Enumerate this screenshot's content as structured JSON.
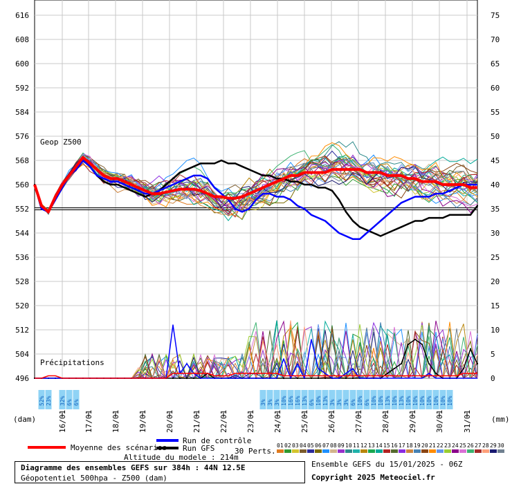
{
  "chart_data": {
    "type": "line",
    "title": "Diagramme des ensembles GEFS sur 384h : 44N 12.5E",
    "subtitle": "Géopotentiel 500hpa - Z500 (dam)",
    "left_axis": {
      "unit_label": "(dam)",
      "ylim": [
        496,
        620
      ],
      "ticks": [
        496,
        504,
        512,
        520,
        528,
        536,
        544,
        552,
        560,
        568,
        576,
        584,
        592,
        600,
        608,
        616
      ]
    },
    "right_axis": {
      "unit_label": "(mm)",
      "ylim": [
        0,
        77
      ],
      "ticks": [
        0,
        5,
        10,
        15,
        20,
        25,
        30,
        35,
        40,
        45,
        50,
        55,
        60,
        65,
        70,
        75
      ]
    },
    "x_tick_labels": [
      "16/01",
      "17/01",
      "18/01",
      "19/01",
      "20/01",
      "21/01",
      "22/01",
      "23/01",
      "24/01",
      "25/01",
      "26/01",
      "27/01",
      "28/01",
      "29/01",
      "30/01",
      "31/01"
    ],
    "steps": 65,
    "reference_line": 552,
    "section_labels": {
      "z500": "Geop Z500",
      "precip": "Précipitations"
    },
    "series": [
      {
        "name": "Moyenne des scénarios",
        "color": "#ff0000",
        "values": [
          560,
          553,
          551,
          556,
          560,
          563,
          566,
          569,
          567,
          565,
          563,
          562,
          562,
          561,
          560,
          559,
          558,
          557,
          557,
          557.5,
          558,
          558.5,
          558.5,
          558.5,
          558,
          557,
          556,
          556,
          555.5,
          555.5,
          556,
          557,
          558,
          559,
          560,
          561,
          562,
          563,
          563,
          564,
          564,
          564,
          564,
          565,
          565,
          565,
          565,
          565,
          564,
          564,
          564,
          563,
          563,
          563,
          562,
          562,
          561,
          561,
          561,
          560,
          560,
          560,
          560,
          559,
          559
        ]
      },
      {
        "name": "Run de contrôle",
        "color": "#0000ff",
        "values": [
          560,
          552,
          551,
          555,
          559,
          563,
          565,
          568,
          566,
          563,
          562,
          561,
          561,
          560,
          559,
          558,
          557,
          557,
          558,
          559,
          560,
          561,
          562,
          563,
          563,
          562,
          559,
          557,
          555,
          552,
          551,
          552,
          555,
          557,
          557,
          556,
          556,
          555,
          553,
          552,
          550,
          549,
          548,
          546,
          544,
          543,
          542,
          542,
          544,
          546,
          548,
          550,
          552,
          554,
          555,
          556,
          556,
          556,
          557,
          557,
          558,
          559,
          560,
          560,
          560
        ]
      },
      {
        "name": "Run GFS",
        "color": "#000000",
        "values": [
          560,
          552,
          551,
          555,
          559,
          563,
          565,
          568,
          566,
          563,
          561,
          560,
          560,
          559,
          558,
          557,
          556,
          557,
          558,
          560,
          562,
          564,
          565,
          566,
          567,
          567,
          567,
          568,
          567,
          567,
          566,
          565,
          564,
          563,
          563,
          562,
          562,
          561,
          561,
          560,
          560,
          559,
          559,
          558,
          555,
          551,
          548,
          546,
          545,
          544,
          543,
          544,
          545,
          546,
          547,
          548,
          548,
          549,
          549,
          549,
          550,
          550,
          550,
          550,
          553
        ]
      },
      {
        "name": "Précip. Run GFS",
        "axis": "right",
        "color": "#000000",
        "values": [
          0,
          0,
          0,
          0,
          0,
          0,
          0,
          0,
          0,
          0,
          0,
          0,
          0,
          0,
          0,
          0,
          0,
          0,
          0,
          0,
          0,
          0,
          0,
          0,
          0,
          1,
          0,
          0,
          0,
          0,
          0,
          0,
          0,
          0,
          0,
          0,
          0,
          0,
          0,
          0,
          0,
          0,
          0,
          0,
          0,
          0,
          0,
          0,
          0,
          0,
          0,
          1,
          2,
          3,
          7,
          8,
          7,
          3,
          1,
          0,
          0,
          0,
          2,
          6,
          3
        ]
      },
      {
        "name": "Précip. Run de contrôle",
        "axis": "right",
        "color": "#0000ff",
        "values": [
          0,
          0,
          0,
          0,
          0,
          0,
          0,
          0,
          0,
          0,
          0,
          0,
          0,
          0,
          0,
          0,
          0,
          0,
          0,
          0,
          11,
          1,
          3,
          1,
          0,
          0,
          0,
          0,
          0,
          0,
          0,
          0,
          0,
          0,
          0,
          0,
          4,
          0,
          3,
          0,
          8,
          2,
          1,
          0,
          0,
          1,
          2,
          0,
          0,
          0,
          0,
          0,
          0,
          0,
          0,
          0,
          0,
          1,
          0,
          0,
          0,
          0,
          0,
          0,
          0
        ]
      },
      {
        "name": "Précip. Moyenne",
        "axis": "right",
        "color": "#ff0000",
        "values": [
          0,
          0,
          0.5,
          0.5,
          0,
          0,
          0,
          0,
          0,
          0,
          0,
          0,
          0,
          0,
          0,
          0,
          0,
          0,
          0,
          0,
          1,
          1,
          1,
          1,
          1,
          1,
          0.5,
          0.5,
          0.5,
          1,
          1,
          1,
          1,
          1,
          1,
          1,
          0.5,
          0.5,
          0.5,
          0.5,
          0.5,
          0.5,
          0.5,
          0.5,
          0.5,
          0.5,
          0.5,
          0.5,
          0.5,
          0.5,
          0.5,
          0.5,
          0.5,
          0.5,
          0.5,
          0.5,
          0.5,
          0.5,
          0.5,
          0.5,
          0.5,
          0.5,
          1,
          1,
          1
        ]
      }
    ],
    "snow_labels": [
      {
        "step": 1,
        "text": "52%"
      },
      {
        "step": 2,
        "text": "23%"
      },
      {
        "step": 4,
        "text": "32%"
      },
      {
        "step": 5,
        "text": "6%"
      },
      {
        "step": 6,
        "text": "6%"
      },
      {
        "step": 33,
        "text": "3%"
      },
      {
        "step": 34,
        "text": "3%"
      },
      {
        "step": 35,
        "text": "3%"
      },
      {
        "step": 36,
        "text": "10%"
      },
      {
        "step": 37,
        "text": "16%"
      },
      {
        "step": 38,
        "text": "16%"
      },
      {
        "step": 39,
        "text": "13%"
      },
      {
        "step": 40,
        "text": "6%"
      },
      {
        "step": 41,
        "text": "10%"
      },
      {
        "step": 42,
        "text": "13%"
      },
      {
        "step": 43,
        "text": "3%"
      },
      {
        "step": 44,
        "text": "3%"
      },
      {
        "step": 45,
        "text": "3%"
      },
      {
        "step": 46,
        "text": "6%"
      },
      {
        "step": 47,
        "text": "10%"
      },
      {
        "step": 48,
        "text": "6%"
      },
      {
        "step": 49,
        "text": "10%"
      },
      {
        "step": 50,
        "text": "10%"
      },
      {
        "step": 51,
        "text": "13%"
      },
      {
        "step": 52,
        "text": "10%"
      },
      {
        "step": 53,
        "text": "13%"
      },
      {
        "step": 54,
        "text": "10%"
      },
      {
        "step": 55,
        "text": "10%"
      },
      {
        "step": 56,
        "text": "10%"
      },
      {
        "step": 57,
        "text": "10%"
      },
      {
        "step": 58,
        "text": "10%"
      },
      {
        "step": 59,
        "text": "10%"
      },
      {
        "step": 60,
        "text": "10%"
      }
    ],
    "perturbations": {
      "label": "30 Perts.",
      "labels": [
        "01",
        "02",
        "03",
        "04",
        "05",
        "06",
        "07",
        "08",
        "09",
        "10",
        "11",
        "12",
        "13",
        "14",
        "15",
        "16",
        "17",
        "18",
        "19",
        "20",
        "21",
        "22",
        "23",
        "24",
        "25",
        "26",
        "27",
        "28",
        "29",
        "30"
      ],
      "colors": [
        "#e07b20",
        "#2f9a2f",
        "#d4c42e",
        "#7c5c2c",
        "#2b2b9c",
        "#7a6a00",
        "#1e90ff",
        "#d2b48c",
        "#9932cc",
        "#2e8b8b",
        "#20b2aa",
        "#b8860b",
        "#1aa84f",
        "#00aa99",
        "#b22222",
        "#556b2f",
        "#8a2be2",
        "#cd853f",
        "#4682b4",
        "#8b4513",
        "#ff8c00",
        "#6495ed",
        "#9acd32",
        "#8b008b",
        "#da70d6",
        "#3cb371",
        "#a52a2a",
        "#ffa07a",
        "#191970",
        "#708090"
      ]
    }
  },
  "legend": {
    "mean_label": "Moyenne des scénarios",
    "control_label": "Run de contrôle",
    "gfs_label": "Run GFS",
    "mean_color": "#ff0000",
    "control_color": "#0000ff",
    "gfs_color": "#000000"
  },
  "model_altitude": "Altitude du modele : 214m",
  "footer": {
    "title": "Diagramme des ensembles GEFS sur 384h : 44N 12.5E",
    "subtitle": "Géopotentiel 500hpa - Z500 (dam)",
    "run_info": "Ensemble GEFS du 15/01/2025 - 06Z",
    "copyright": "Copyright 2025 Meteociel.fr"
  }
}
